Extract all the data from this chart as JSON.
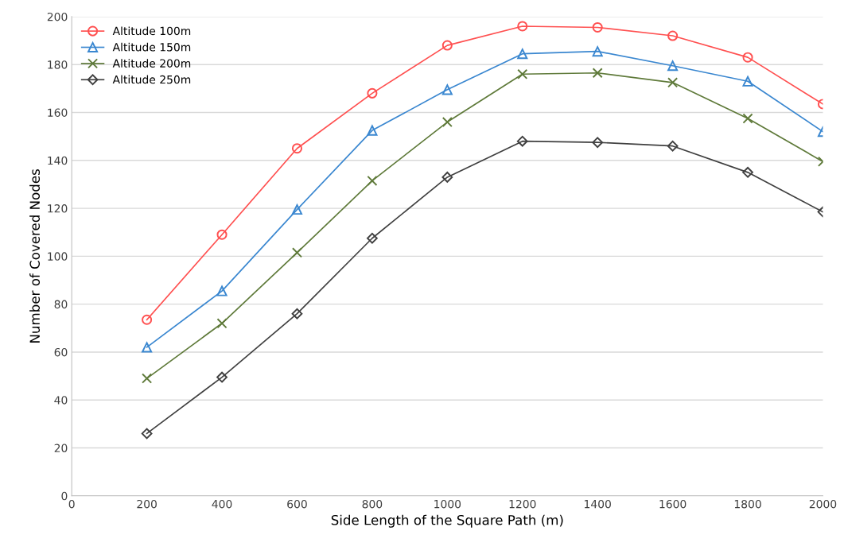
{
  "chart_data": {
    "type": "line",
    "xlabel": "Side Length of the Square Path (m)",
    "ylabel": "Number of Covered Nodes",
    "x": [
      200,
      400,
      600,
      800,
      1000,
      1200,
      1400,
      1600,
      1800,
      2000
    ],
    "series": [
      {
        "name": "Altitude 100m",
        "color": "#ff5050",
        "marker": "circle",
        "values": [
          73.5,
          109,
          145,
          168,
          188,
          196,
          195.5,
          192,
          183,
          163.5
        ]
      },
      {
        "name": "Altitude 150m",
        "color": "#3a87d0",
        "marker": "triangle",
        "values": [
          62,
          85.5,
          119.5,
          152.5,
          169.5,
          184.5,
          185.5,
          179.5,
          173,
          152
        ]
      },
      {
        "name": "Altitude 200m",
        "color": "#5f7a3a",
        "marker": "cross",
        "values": [
          49,
          72,
          101.5,
          131.5,
          156,
          176,
          176.5,
          172.5,
          157.5,
          139.5
        ]
      },
      {
        "name": "Altitude 250m",
        "color": "#404040",
        "marker": "diamond",
        "values": [
          26,
          49.5,
          76,
          107.5,
          133,
          148,
          147.5,
          146,
          135,
          118.5
        ]
      }
    ],
    "xlim": [
      0,
      2000
    ],
    "xticks": [
      0,
      200,
      400,
      600,
      800,
      1000,
      1200,
      1400,
      1600,
      1800,
      2000
    ],
    "ylim": [
      0,
      200
    ],
    "yticks": [
      0,
      20,
      40,
      60,
      80,
      100,
      120,
      140,
      160,
      180,
      200
    ],
    "grid": "y",
    "legend": "top left"
  }
}
